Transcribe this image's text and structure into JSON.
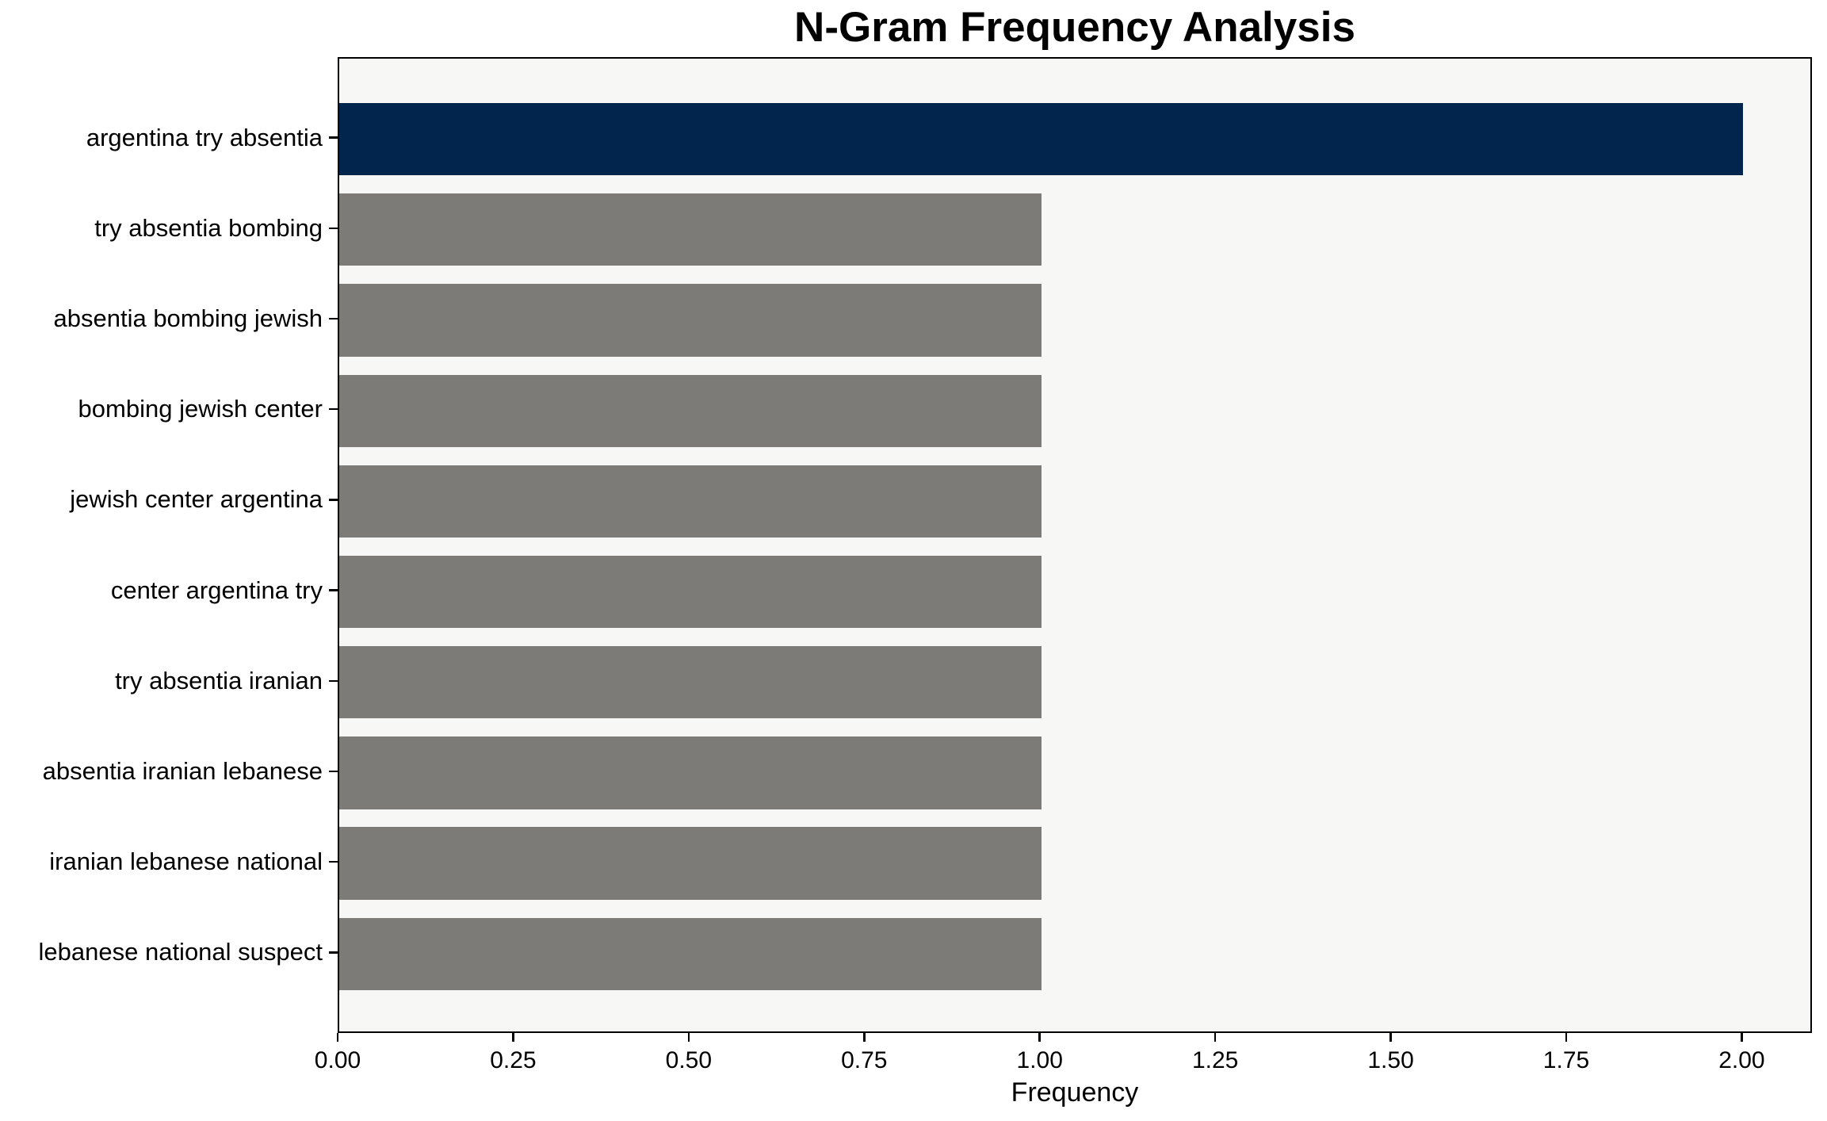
{
  "chart_data": {
    "type": "bar",
    "orientation": "horizontal",
    "title": "N-Gram Frequency Analysis",
    "xlabel": "Frequency",
    "ylabel": "",
    "categories": [
      "argentina try absentia",
      "try absentia bombing",
      "absentia bombing jewish",
      "bombing jewish center",
      "jewish center argentina",
      "center argentina try",
      "try absentia iranian",
      "absentia iranian lebanese",
      "iranian lebanese national",
      "lebanese national suspect"
    ],
    "values": [
      2,
      1,
      1,
      1,
      1,
      1,
      1,
      1,
      1,
      1
    ],
    "bar_colors": [
      "#02254e",
      "#7c7b77",
      "#7c7b77",
      "#7c7b77",
      "#7c7b77",
      "#7c7b77",
      "#7c7b77",
      "#7c7b77",
      "#7c7b77",
      "#7c7b77"
    ],
    "xlim": [
      0,
      2.1
    ],
    "xticks": {
      "values": [
        0,
        0.25,
        0.5,
        0.75,
        1.0,
        1.25,
        1.5,
        1.75,
        2.0
      ],
      "labels": [
        "0.00",
        "0.25",
        "0.50",
        "0.75",
        "1.00",
        "1.25",
        "1.50",
        "1.75",
        "2.00"
      ]
    },
    "grid": false,
    "legend": false,
    "colors": {
      "highlight_bar": "#02254e",
      "default_bar": "#7c7b77",
      "plot_background": "#f7f7f6",
      "figure_background": "#ffffff",
      "spine": "#000000",
      "text": "#000000"
    }
  }
}
